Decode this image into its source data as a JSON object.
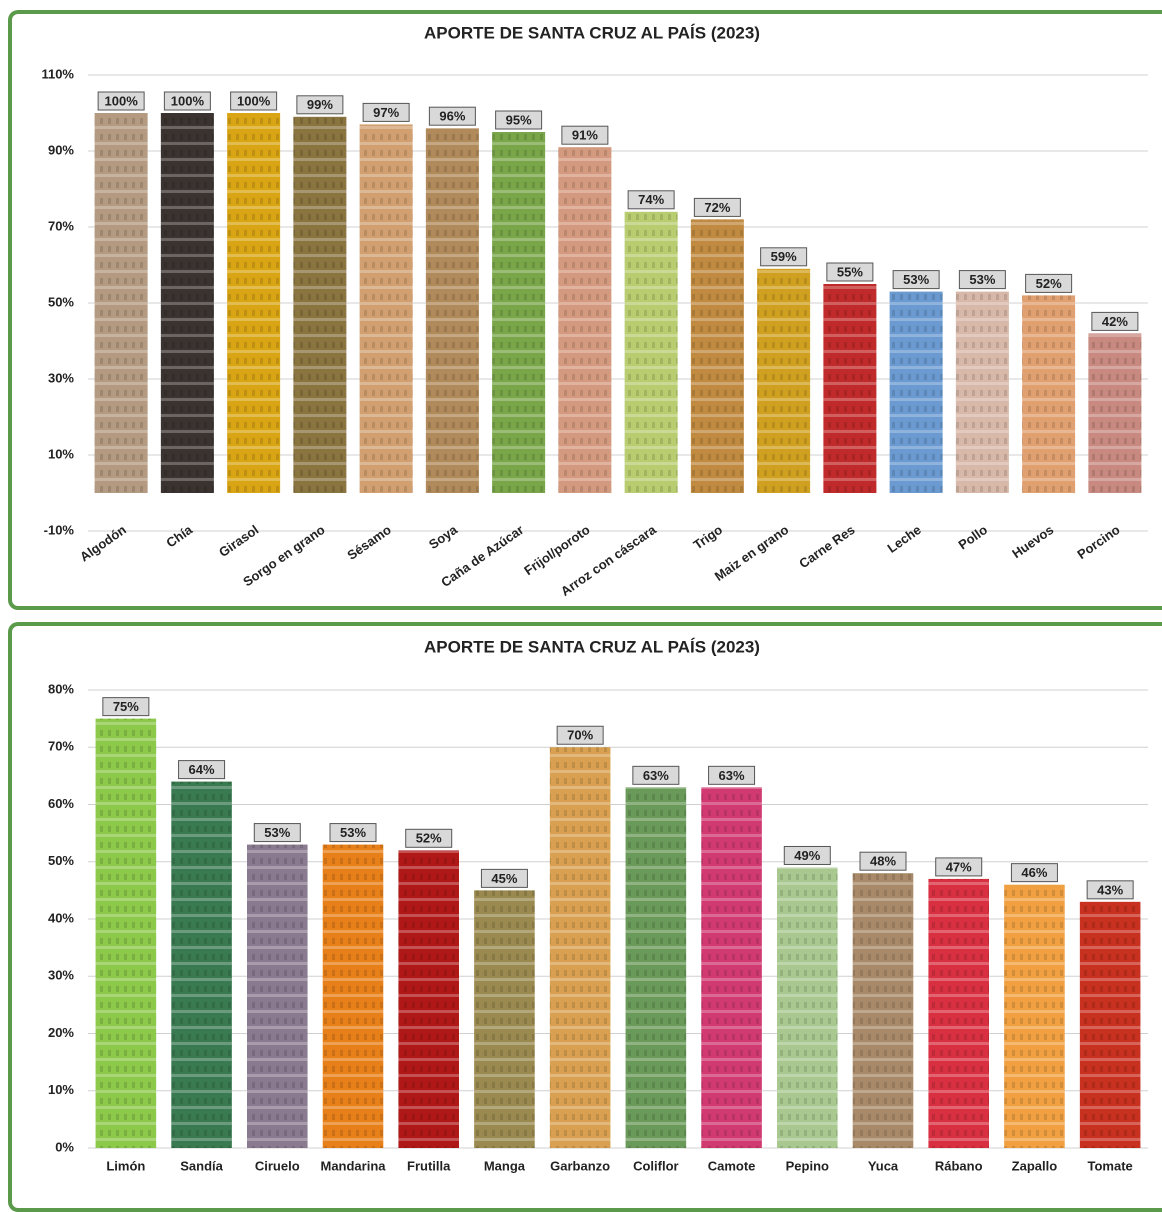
{
  "chart_data": [
    {
      "type": "bar",
      "title": "APORTE DE SANTA CRUZ AL PAÍS (2023)",
      "categories": [
        "Algodón",
        "Chía",
        "Girasol",
        "Sorgo en grano",
        "Sésamo",
        "Soya",
        "Caña de Azúcar",
        "Frijol/poroto",
        "Arroz con cáscara",
        "Trigo",
        "Maiz en grano",
        "Carne Res",
        "Leche",
        "Pollo",
        "Huevos",
        "Porcino"
      ],
      "values": [
        100,
        100,
        100,
        99,
        97,
        96,
        95,
        91,
        74,
        72,
        59,
        55,
        53,
        53,
        52,
        42
      ],
      "value_labels": [
        "100%",
        "100%",
        "100%",
        "99%",
        "97%",
        "96%",
        "95%",
        "91%",
        "74%",
        "72%",
        "59%",
        "55%",
        "53%",
        "53%",
        "52%",
        "42%"
      ],
      "colors": [
        "#b49a80",
        "#3a3330",
        "#d9a514",
        "#8a7440",
        "#d2a070",
        "#b08a5a",
        "#7aa64a",
        "#d49a80",
        "#b8cc70",
        "#c08a40",
        "#d0a020",
        "#c02a2a",
        "#6a9ad0",
        "#d8b8a8",
        "#e0a070",
        "#c88a80"
      ],
      "ylim": [
        -10,
        110
      ],
      "yticks": [
        {
          "value": -10,
          "label": "-10%"
        },
        {
          "value": 10,
          "label": "10%"
        },
        {
          "value": 30,
          "label": "30%"
        },
        {
          "value": 50,
          "label": "50%"
        },
        {
          "value": 70,
          "label": "70%"
        },
        {
          "value": 90,
          "label": "90%"
        },
        {
          "value": 110,
          "label": "110%"
        }
      ],
      "grid": true,
      "rotate_labels": true
    },
    {
      "type": "bar",
      "title": "APORTE DE SANTA CRUZ AL PAÍS (2023)",
      "categories": [
        "Limón",
        "Sandía",
        "Ciruelo",
        "Mandarina",
        "Frutilla",
        "Manga",
        "Garbanzo",
        "Coliflor",
        "Camote",
        "Pepino",
        "Yuca",
        "Rábano",
        "Zapallo",
        "Tomate"
      ],
      "values": [
        75,
        64,
        53,
        53,
        52,
        45,
        70,
        63,
        63,
        49,
        48,
        47,
        46,
        43
      ],
      "value_labels": [
        "75%",
        "64%",
        "53%",
        "53%",
        "52%",
        "45%",
        "70%",
        "63%",
        "63%",
        "49%",
        "48%",
        "47%",
        "46%",
        "43%"
      ],
      "colors": [
        "#8cc84a",
        "#3a7a50",
        "#8a7a90",
        "#e8801a",
        "#b01818",
        "#9a8a50",
        "#d8a050",
        "#6a9a5a",
        "#d03a70",
        "#a8c890",
        "#a88a6a",
        "#d83040",
        "#f0a040",
        "#c83020"
      ],
      "ylim": [
        0,
        80
      ],
      "yticks": [
        {
          "value": 0,
          "label": "0%"
        },
        {
          "value": 10,
          "label": "10%"
        },
        {
          "value": 20,
          "label": "20%"
        },
        {
          "value": 30,
          "label": "30%"
        },
        {
          "value": 40,
          "label": "40%"
        },
        {
          "value": 50,
          "label": "50%"
        },
        {
          "value": 60,
          "label": "60%"
        },
        {
          "value": 70,
          "label": "70%"
        },
        {
          "value": 80,
          "label": "80%"
        }
      ],
      "grid": true,
      "rotate_labels": false
    }
  ]
}
